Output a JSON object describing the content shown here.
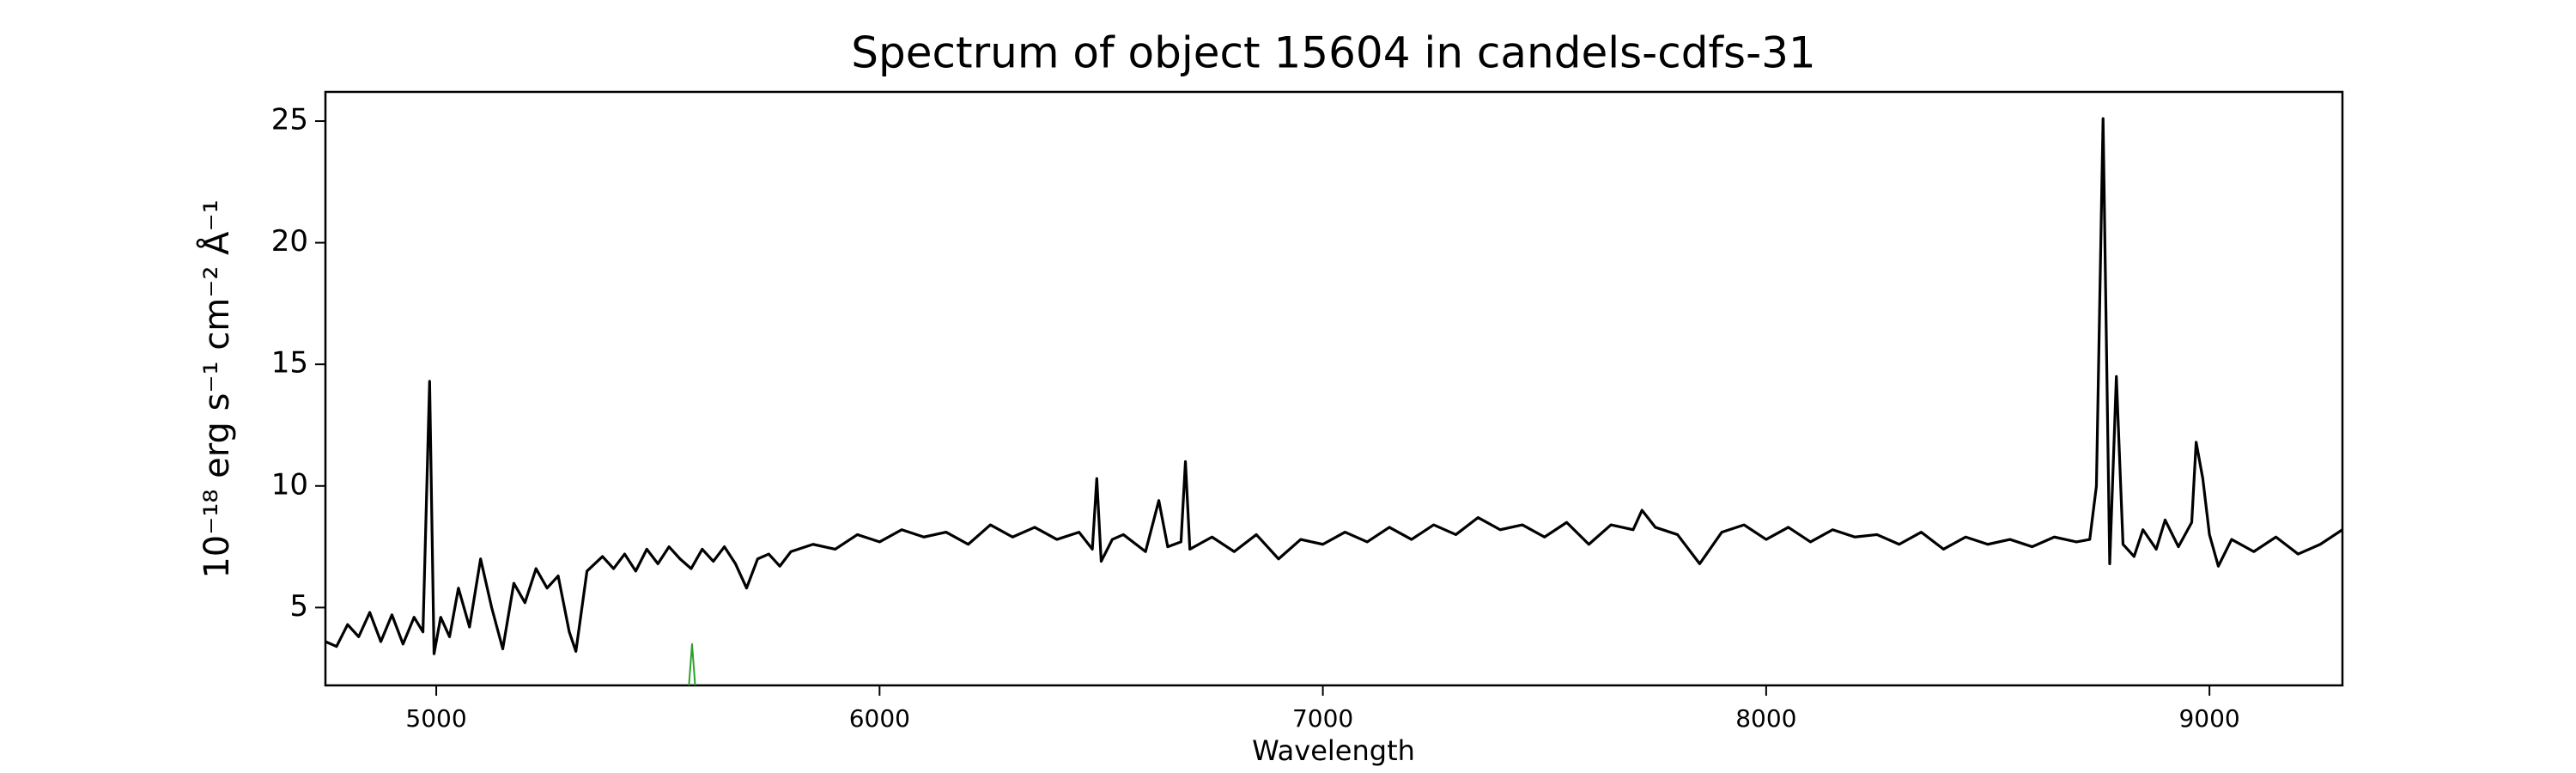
{
  "chart_data": {
    "type": "line",
    "title": "Spectrum of object 15604 in candels-cdfs-31",
    "x_label": "Wavelength",
    "y_label": "10⁻¹⁸ erg s⁻¹ cm⁻² Å⁻¹",
    "xlim": [
      4750,
      9300
    ],
    "ylim": [
      1.8,
      26.2
    ],
    "xticks": [
      5000,
      6000,
      7000,
      8000,
      9000
    ],
    "yticks": [
      5,
      10,
      15,
      20,
      25
    ],
    "grid": false,
    "series": [
      {
        "color": "#000000",
        "x": [
          4750,
          4775,
          4800,
          4825,
          4850,
          4875,
          4900,
          4925,
          4950,
          4970,
          4985,
          4995,
          5010,
          5030,
          5050,
          5075,
          5100,
          5125,
          5150,
          5175,
          5200,
          5225,
          5250,
          5275,
          5300,
          5315,
          5340,
          5375,
          5400,
          5425,
          5450,
          5475,
          5500,
          5525,
          5550,
          5575,
          5600,
          5625,
          5650,
          5675,
          5700,
          5725,
          5750,
          5775,
          5800,
          5850,
          5900,
          5950,
          6000,
          6050,
          6100,
          6150,
          6200,
          6250,
          6300,
          6350,
          6400,
          6450,
          6480,
          6490,
          6500,
          6525,
          6550,
          6600,
          6630,
          6650,
          6680,
          6690,
          6700,
          6750,
          6800,
          6850,
          6900,
          6950,
          7000,
          7050,
          7100,
          7150,
          7200,
          7250,
          7300,
          7350,
          7400,
          7450,
          7500,
          7550,
          7600,
          7650,
          7700,
          7720,
          7750,
          7800,
          7850,
          7900,
          7950,
          8000,
          8050,
          8100,
          8150,
          8200,
          8250,
          8300,
          8350,
          8400,
          8450,
          8500,
          8550,
          8600,
          8650,
          8700,
          8730,
          8745,
          8760,
          8775,
          8790,
          8805,
          8830,
          8850,
          8880,
          8900,
          8930,
          8960,
          8970,
          8985,
          9000,
          9020,
          9050,
          9100,
          9150,
          9200,
          9250,
          9300
        ],
        "values": [
          3.6,
          3.4,
          4.3,
          3.8,
          4.8,
          3.6,
          4.7,
          3.5,
          4.6,
          4.0,
          14.3,
          3.1,
          4.6,
          3.8,
          5.8,
          4.2,
          7.0,
          5.0,
          3.3,
          6.0,
          5.2,
          6.6,
          5.8,
          6.3,
          4.0,
          3.2,
          6.5,
          7.1,
          6.6,
          7.2,
          6.5,
          7.4,
          6.8,
          7.5,
          7.0,
          6.6,
          7.4,
          6.9,
          7.5,
          6.8,
          5.8,
          7.0,
          7.2,
          6.7,
          7.3,
          7.6,
          7.4,
          8.0,
          7.7,
          8.2,
          7.9,
          8.1,
          7.6,
          8.4,
          7.9,
          8.3,
          7.8,
          8.1,
          7.4,
          10.3,
          6.9,
          7.8,
          8.0,
          7.3,
          9.4,
          7.5,
          7.7,
          11.0,
          7.4,
          7.9,
          7.3,
          8.0,
          7.0,
          7.8,
          7.6,
          8.1,
          7.7,
          8.3,
          7.8,
          8.4,
          8.0,
          8.7,
          8.2,
          8.4,
          7.9,
          8.5,
          7.6,
          8.4,
          8.2,
          9.0,
          8.3,
          8.0,
          6.8,
          8.1,
          8.4,
          7.8,
          8.3,
          7.7,
          8.2,
          7.9,
          8.0,
          7.6,
          8.1,
          7.4,
          7.9,
          7.6,
          7.8,
          7.5,
          7.9,
          7.7,
          7.8,
          10.0,
          25.1,
          6.8,
          14.5,
          7.6,
          7.1,
          8.2,
          7.4,
          8.6,
          7.5,
          8.5,
          11.8,
          10.3,
          8.0,
          6.7,
          7.8,
          7.3,
          7.9,
          7.2,
          7.6,
          8.2
        ]
      },
      {
        "color": "#2ca02c",
        "x": [
          5570,
          5577,
          5584
        ],
        "values": [
          1.8,
          3.5,
          1.8
        ]
      }
    ]
  }
}
